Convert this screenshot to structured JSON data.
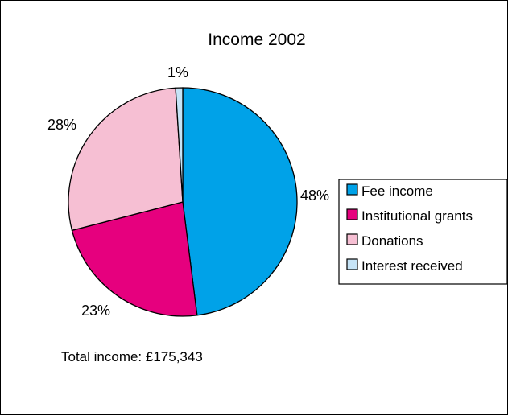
{
  "chart_data": {
    "type": "pie",
    "title": "Income 2002",
    "categories": [
      "Fee income",
      "Institutional grants",
      "Donations",
      "Interest received"
    ],
    "values": [
      48,
      23,
      28,
      1
    ],
    "value_labels": [
      "48%",
      "23%",
      "28%",
      "1%"
    ],
    "unit": "%",
    "colors": [
      "#00a2e8",
      "#e6007e",
      "#f6bfd3",
      "#c6e4f7"
    ],
    "legend": {
      "placement": "right"
    },
    "annotation": "Total income: £175,343"
  }
}
